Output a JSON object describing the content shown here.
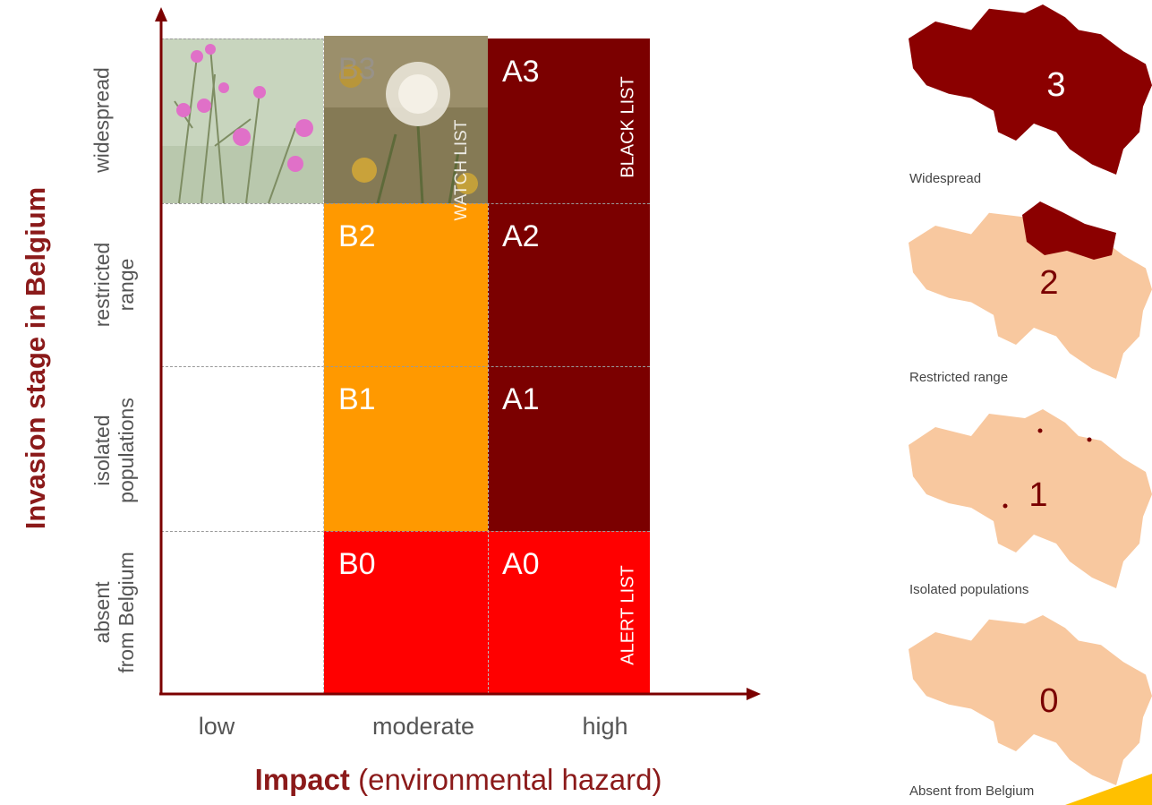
{
  "y_axis": {
    "title": "Invasion stage in Belgium",
    "rows": [
      {
        "line1": "widespread",
        "line2": ""
      },
      {
        "line1": "restricted",
        "line2": "range"
      },
      {
        "line1": "isolated",
        "line2": "populations"
      },
      {
        "line1": "absent",
        "line2": "from Belgium"
      }
    ]
  },
  "x_axis": {
    "title_bold": "Impact",
    "title_rest": " (environmental hazard)",
    "columns": [
      "low",
      "moderate",
      "high"
    ]
  },
  "grid": {
    "cells": {
      "B3": "B3",
      "A3": "A3",
      "B2": "B2",
      "A2": "A2",
      "B1": "B1",
      "A1": "A1",
      "B0": "B0",
      "A0": "A0"
    },
    "watch_list": "WATCH LIST",
    "black_list": "BLACK LIST",
    "alert_list": "ALERT LIST"
  },
  "colors": {
    "dark_red": "#7b0000",
    "orange": "#ff9900",
    "red": "#ff0000",
    "map_fill": "#f8c89f",
    "map_dark": "#8b0000",
    "title": "#8b1a1a"
  },
  "maps": [
    {
      "number": "3",
      "caption": "Widespread"
    },
    {
      "number": "2",
      "caption": "Restricted range"
    },
    {
      "number": "1",
      "caption": "Isolated populations"
    },
    {
      "number": "0",
      "caption": "Absent from Belgium"
    }
  ]
}
